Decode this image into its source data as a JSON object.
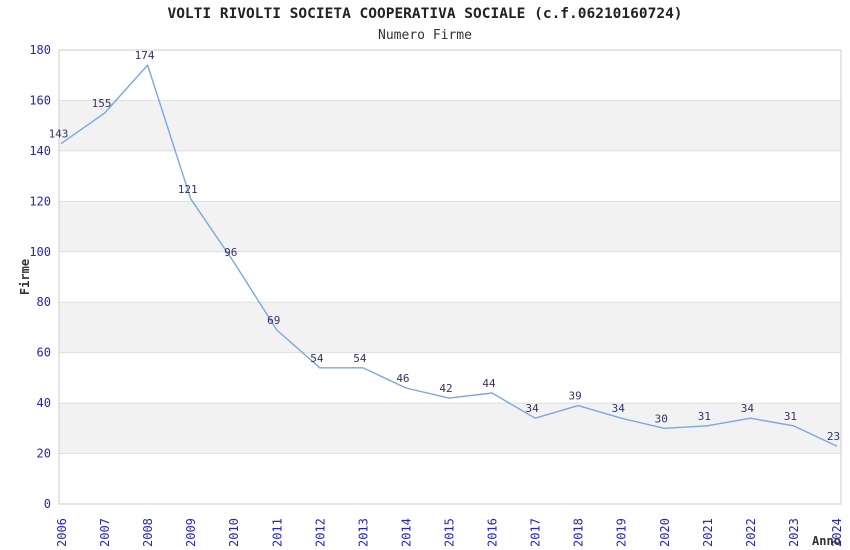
{
  "title": "VOLTI RIVOLTI SOCIETA COOPERATIVA SOCIALE (c.f.06210160724)",
  "subtitle": "Numero Firme",
  "chart_data": {
    "type": "line",
    "title": "VOLTI RIVOLTI SOCIETA COOPERATIVA SOCIALE (c.f.06210160724)",
    "subtitle": "Numero Firme",
    "x": [
      2006,
      2007,
      2008,
      2009,
      2010,
      2011,
      2012,
      2013,
      2014,
      2015,
      2016,
      2017,
      2018,
      2019,
      2020,
      2021,
      2022,
      2023,
      2024
    ],
    "values": [
      143,
      155,
      174,
      121,
      96,
      69,
      54,
      54,
      46,
      42,
      44,
      34,
      39,
      34,
      30,
      31,
      34,
      31,
      23
    ],
    "xlabel": "Anno",
    "ylabel": "Firme",
    "ylim": [
      0,
      180
    ],
    "ytick_step": 20,
    "yticks": [
      0,
      20,
      40,
      60,
      80,
      100,
      120,
      140,
      160,
      180
    ],
    "grid": "alternating-horizontal-bands",
    "legend": "none",
    "data_labels": true,
    "colors": {
      "line": "#7da7e0",
      "tick_label": "#2424c4",
      "data_label": "#333366",
      "band": "#f2f2f2",
      "gridline": "#e0e0e0",
      "plot_border": "#cccccc",
      "title": "#222222",
      "subtitle": "#333333",
      "axis_label": "#333333"
    }
  }
}
